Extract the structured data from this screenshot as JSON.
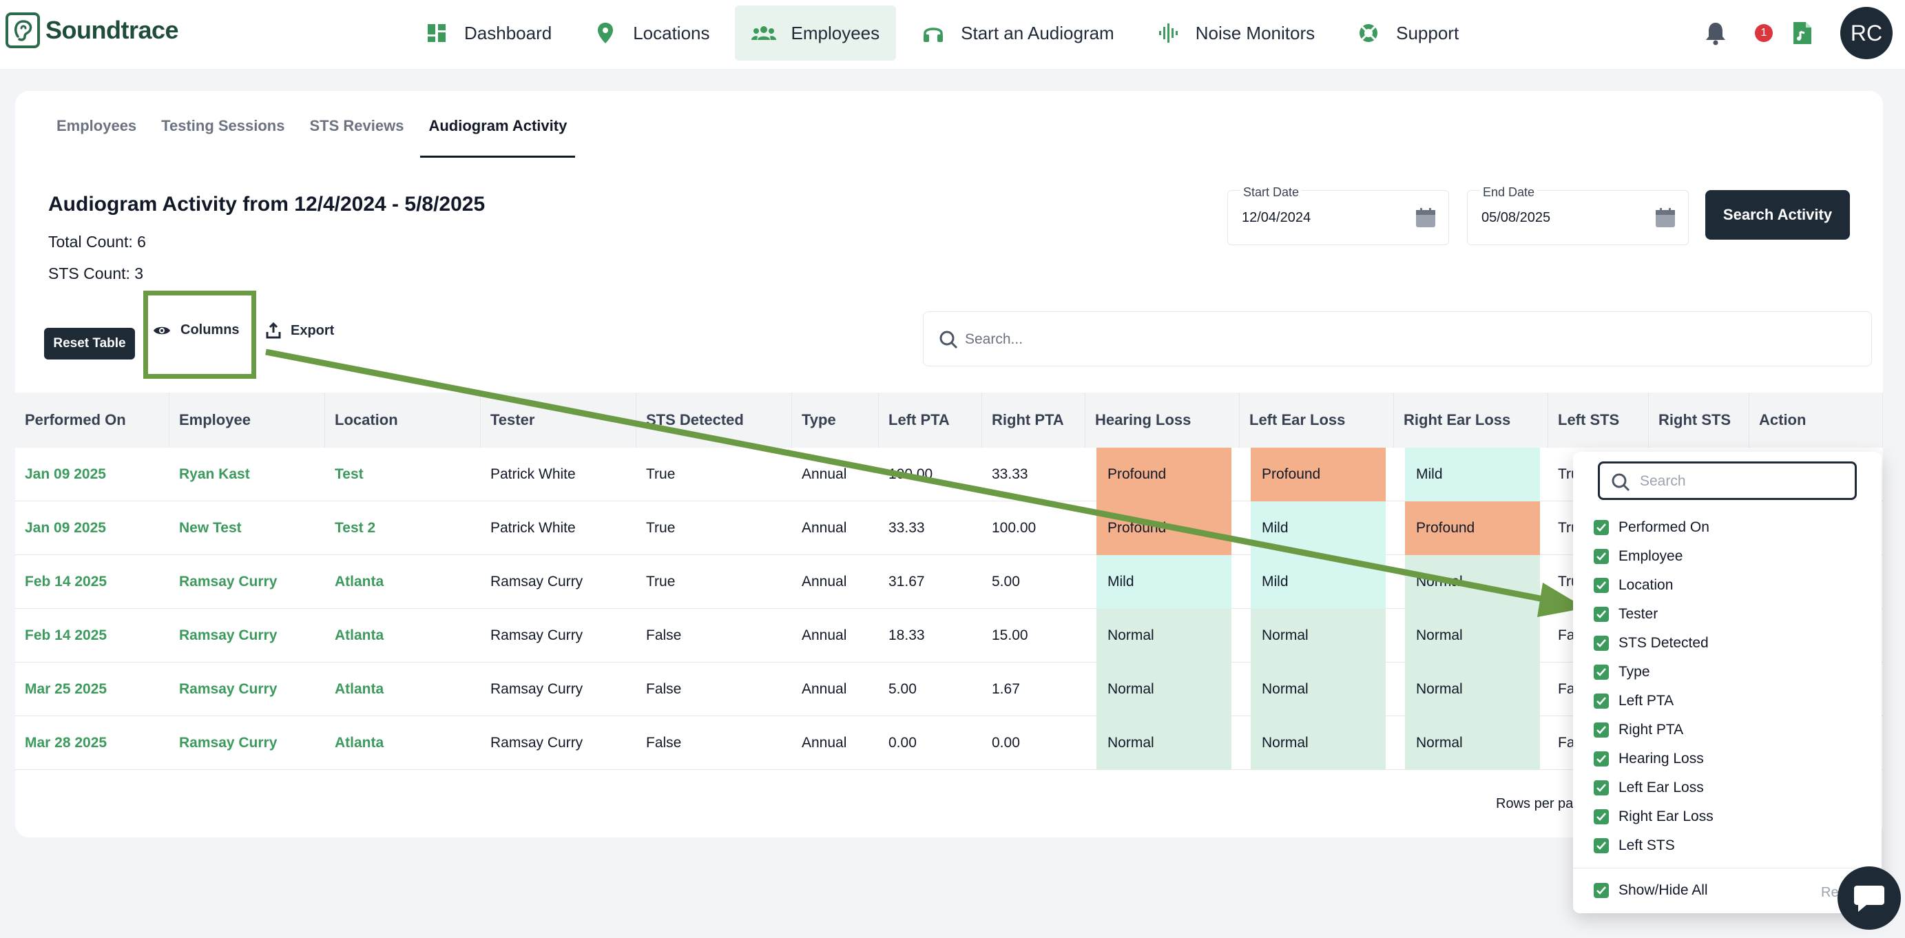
{
  "brand": {
    "name": "Soundtrace"
  },
  "nav": {
    "items": [
      {
        "label": "Dashboard",
        "icon": "dashboard-icon"
      },
      {
        "label": "Locations",
        "icon": "location-pin-icon"
      },
      {
        "label": "Employees",
        "icon": "people-icon"
      },
      {
        "label": "Start an Audiogram",
        "icon": "headphones-icon"
      },
      {
        "label": "Noise Monitors",
        "icon": "waveform-icon"
      },
      {
        "label": "Support",
        "icon": "lifebuoy-icon"
      }
    ],
    "active": "Employees"
  },
  "header": {
    "notification_count": "1",
    "avatar_initials": "RC"
  },
  "tabs": [
    {
      "label": "Employees"
    },
    {
      "label": "Testing Sessions"
    },
    {
      "label": "STS Reviews"
    },
    {
      "label": "Audiogram Activity"
    }
  ],
  "activity": {
    "title": "Audiogram Activity from 12/4/2024 - 5/8/2025",
    "total_count": "Total Count: 6",
    "sts_count": "STS Count: 3",
    "start_date_label": "Start Date",
    "start_date": "12/04/2024",
    "end_date_label": "End Date",
    "end_date": "05/08/2025",
    "search_button": "Search Activity"
  },
  "toolbar": {
    "reset": "Reset Table",
    "columns": "Columns",
    "export": "Export",
    "search_placeholder": "Search..."
  },
  "table": {
    "headers": [
      "Performed On",
      "Employee",
      "Location",
      "Tester",
      "STS Detected",
      "Type",
      "Left PTA",
      "Right PTA",
      "Hearing Loss",
      "Left Ear Loss",
      "Right Ear Loss",
      "Left STS",
      "Right STS",
      "Action"
    ],
    "rows": [
      {
        "date": "Jan 09 2025",
        "employee": "Ryan Kast",
        "location": "Test",
        "tester": "Patrick White",
        "sts": "True",
        "type": "Annual",
        "left_pta": "100.00",
        "right_pta": "33.33",
        "hearing": "Profound",
        "left_loss": "Profound",
        "right_loss": "Mild",
        "left_sts": "True"
      },
      {
        "date": "Jan 09 2025",
        "employee": "New Test",
        "location": "Test 2",
        "tester": "Patrick White",
        "sts": "True",
        "type": "Annual",
        "left_pta": "33.33",
        "right_pta": "100.00",
        "hearing": "Profound",
        "left_loss": "Mild",
        "right_loss": "Profound",
        "left_sts": "True"
      },
      {
        "date": "Feb 14 2025",
        "employee": "Ramsay Curry",
        "location": "Atlanta",
        "tester": "Ramsay Curry",
        "sts": "True",
        "type": "Annual",
        "left_pta": "31.67",
        "right_pta": "5.00",
        "hearing": "Mild",
        "left_loss": "Mild",
        "right_loss": "Normal",
        "left_sts": "True"
      },
      {
        "date": "Feb 14 2025",
        "employee": "Ramsay Curry",
        "location": "Atlanta",
        "tester": "Ramsay Curry",
        "sts": "False",
        "type": "Annual",
        "left_pta": "18.33",
        "right_pta": "15.00",
        "hearing": "Normal",
        "left_loss": "Normal",
        "right_loss": "Normal",
        "left_sts": "False"
      },
      {
        "date": "Mar 25 2025",
        "employee": "Ramsay Curry",
        "location": "Atlanta",
        "tester": "Ramsay Curry",
        "sts": "False",
        "type": "Annual",
        "left_pta": "5.00",
        "right_pta": "1.67",
        "hearing": "Normal",
        "left_loss": "Normal",
        "right_loss": "Normal",
        "left_sts": "False"
      },
      {
        "date": "Mar 28 2025",
        "employee": "Ramsay Curry",
        "location": "Atlanta",
        "tester": "Ramsay Curry",
        "sts": "False",
        "type": "Annual",
        "left_pta": "0.00",
        "right_pta": "0.00",
        "hearing": "Normal",
        "left_loss": "Normal",
        "right_loss": "Normal",
        "left_sts": "False"
      }
    ],
    "rows_per_page_label": "Rows per page"
  },
  "columns_popup": {
    "search_placeholder": "Search",
    "options": [
      "Performed On",
      "Employee",
      "Location",
      "Tester",
      "STS Detected",
      "Type",
      "Left PTA",
      "Right PTA",
      "Hearing Loss",
      "Left Ear Loss",
      "Right Ear Loss",
      "Left STS"
    ],
    "show_hide_all": "Show/Hide All",
    "reset_label": "Reset"
  },
  "colors": {
    "brand_green": "#3b9a5c",
    "dark": "#1e2a36",
    "annotation_green": "#6b9a44",
    "profound": "#f4b08a",
    "mild": "#d6f7f0",
    "normal": "#d9efe4"
  }
}
